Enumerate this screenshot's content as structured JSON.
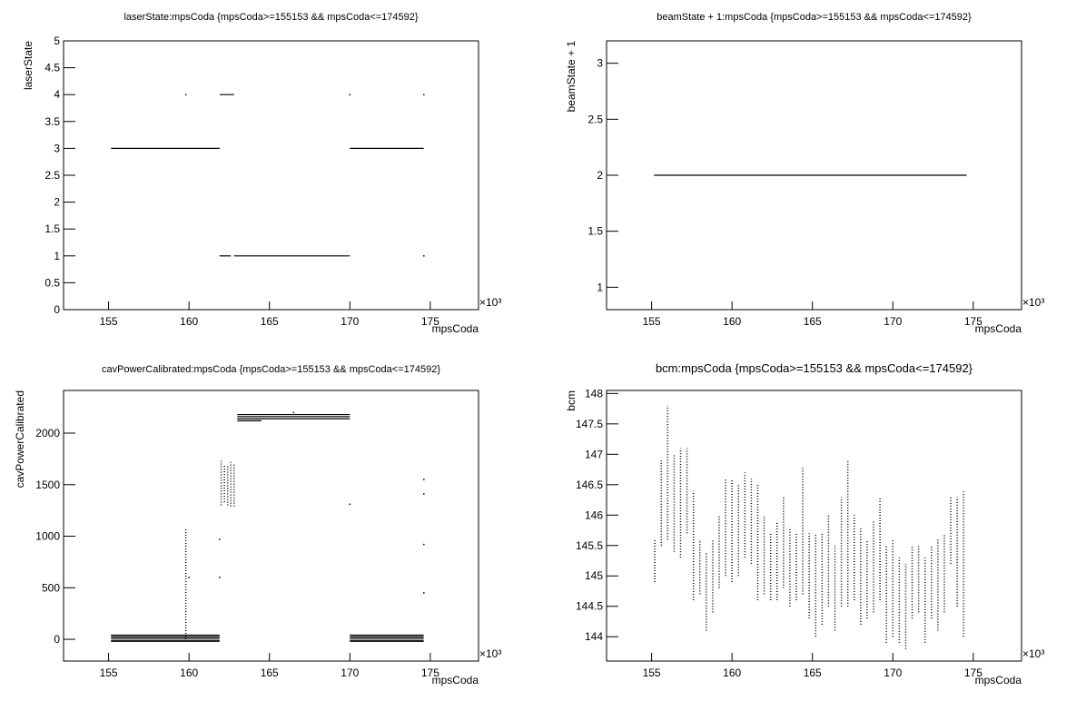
{
  "chart_data": [
    {
      "type": "scatter",
      "title": "laserState:mpsCoda {mpsCoda>=155153 && mpsCoda<=174592}",
      "x_label": "mpsCoda",
      "y_label": "laserState",
      "x_exponent_label": "×10³",
      "xlim": [
        152.2,
        178.0
      ],
      "xticks": [
        155,
        160,
        165,
        170,
        175
      ],
      "ylim": [
        0,
        5
      ],
      "yticks": [
        0,
        0.5,
        1,
        1.5,
        2,
        2.5,
        3,
        3.5,
        4,
        4.5,
        5
      ],
      "color": "#000000",
      "runs": [
        {
          "x": [
            155.15,
            161.9
          ],
          "y": 3
        },
        {
          "x": [
            170.0,
            174.59
          ],
          "y": 3
        },
        {
          "x": [
            161.9,
            162.6
          ],
          "y": 1
        },
        {
          "x": [
            162.8,
            170.0
          ],
          "y": 1
        },
        {
          "x": [
            161.9,
            162.8
          ],
          "y": 4
        },
        {
          "x": [
            159.75,
            159.85
          ],
          "y": 4
        }
      ],
      "ranges": [],
      "points": {
        "x": [
          170.0,
          174.6,
          174.6
        ],
        "y": [
          4,
          4,
          1
        ]
      }
    },
    {
      "type": "scatter",
      "title": "beamState + 1:mpsCoda {mpsCoda>=155153 && mpsCoda<=174592}",
      "x_label": "mpsCoda",
      "y_label": "beamState + 1",
      "x_exponent_label": "×10³",
      "xlim": [
        152.2,
        178.0
      ],
      "xticks": [
        155,
        160,
        165,
        170,
        175
      ],
      "ylim": [
        0.8,
        3.2
      ],
      "yticks": [
        1,
        1.5,
        2,
        2.5,
        3
      ],
      "color": "#000000",
      "runs": [
        {
          "x": [
            155.15,
            174.59
          ],
          "y": 2
        }
      ],
      "ranges": [],
      "points": {
        "x": [],
        "y": []
      }
    },
    {
      "type": "scatter",
      "title": "cavPowerCalibrated:mpsCoda {mpsCoda>=155153 && mpsCoda<=174592}",
      "x_label": "mpsCoda",
      "y_label": "cavPowerCalibrated",
      "x_exponent_label": "×10³",
      "xlim": [
        152.2,
        178.0
      ],
      "xticks": [
        155,
        160,
        165,
        170,
        175
      ],
      "ylim": [
        -211,
        2414
      ],
      "yticks": [
        0,
        500,
        1000,
        1500,
        2000
      ],
      "color": "#000000",
      "runs": [
        {
          "x": [
            155.15,
            161.9
          ],
          "y": 40
        },
        {
          "x": [
            155.15,
            161.9
          ],
          "y": 25
        },
        {
          "x": [
            155.15,
            161.9
          ],
          "y": 10
        },
        {
          "x": [
            155.15,
            161.9
          ],
          "y": -10
        },
        {
          "x": [
            155.15,
            161.9
          ],
          "y": -20
        },
        {
          "x": [
            170.0,
            174.59
          ],
          "y": 40
        },
        {
          "x": [
            170.0,
            174.59
          ],
          "y": 25
        },
        {
          "x": [
            170.0,
            174.59
          ],
          "y": 10
        },
        {
          "x": [
            170.0,
            174.59
          ],
          "y": -10
        },
        {
          "x": [
            170.0,
            174.59
          ],
          "y": -20
        },
        {
          "x": [
            163.0,
            170.0
          ],
          "y": 2180
        },
        {
          "x": [
            163.0,
            170.0
          ],
          "y": 2160
        },
        {
          "x": [
            163.0,
            170.0
          ],
          "y": 2140
        },
        {
          "x": [
            163.0,
            164.5
          ],
          "y": 2120
        }
      ],
      "ranges": [
        {
          "x": 159.8,
          "y": [
            0,
            1080
          ]
        },
        {
          "x": 162.0,
          "y": [
            1300,
            1730
          ]
        },
        {
          "x": 162.2,
          "y": [
            1330,
            1700
          ]
        },
        {
          "x": 162.4,
          "y": [
            1300,
            1680
          ]
        },
        {
          "x": 162.6,
          "y": [
            1290,
            1720
          ]
        },
        {
          "x": 162.8,
          "y": [
            1290,
            1700
          ]
        }
      ],
      "points": {
        "x": [
          160.0,
          161.9,
          161.9,
          170.0,
          174.6,
          174.6,
          174.6,
          174.6,
          166.5
        ],
        "y": [
          600,
          970,
          600,
          1310,
          1550,
          1410,
          920,
          450,
          2200
        ]
      }
    },
    {
      "type": "scatter",
      "title": "bcm:mpsCoda {mpsCoda>=155153 && mpsCoda<=174592}",
      "x_label": "mpsCoda",
      "y_label": "bcm",
      "x_exponent_label": "×10³",
      "xlim": [
        152.2,
        178.0
      ],
      "xticks": [
        155,
        160,
        165,
        170,
        175
      ],
      "ylim": [
        143.6,
        148.05
      ],
      "yticks": [
        144,
        144.5,
        145,
        145.5,
        146,
        146.5,
        147,
        147.5,
        148
      ],
      "color": "#000000",
      "runs": [],
      "ranges": [
        {
          "x": 155.2,
          "y": [
            144.9,
            145.6
          ]
        },
        {
          "x": 155.6,
          "y": [
            145.5,
            146.9
          ]
        },
        {
          "x": 156.0,
          "y": [
            145.6,
            147.8
          ]
        },
        {
          "x": 156.4,
          "y": [
            145.4,
            147.0
          ]
        },
        {
          "x": 156.8,
          "y": [
            145.3,
            147.1
          ]
        },
        {
          "x": 157.2,
          "y": [
            145.7,
            147.1
          ]
        },
        {
          "x": 157.6,
          "y": [
            144.6,
            146.4
          ]
        },
        {
          "x": 158.0,
          "y": [
            144.7,
            145.6
          ]
        },
        {
          "x": 158.4,
          "y": [
            144.1,
            145.4
          ]
        },
        {
          "x": 158.8,
          "y": [
            144.4,
            145.6
          ]
        },
        {
          "x": 159.2,
          "y": [
            144.8,
            146.0
          ]
        },
        {
          "x": 159.6,
          "y": [
            145.0,
            146.6
          ]
        },
        {
          "x": 160.0,
          "y": [
            144.9,
            146.6
          ]
        },
        {
          "x": 160.4,
          "y": [
            145.0,
            146.5
          ]
        },
        {
          "x": 160.8,
          "y": [
            145.3,
            146.7
          ]
        },
        {
          "x": 161.2,
          "y": [
            145.2,
            146.6
          ]
        },
        {
          "x": 161.6,
          "y": [
            144.6,
            146.5
          ]
        },
        {
          "x": 162.0,
          "y": [
            144.7,
            146.0
          ]
        },
        {
          "x": 162.4,
          "y": [
            144.6,
            145.7
          ]
        },
        {
          "x": 162.8,
          "y": [
            144.6,
            145.9
          ]
        },
        {
          "x": 163.2,
          "y": [
            144.8,
            146.3
          ]
        },
        {
          "x": 163.6,
          "y": [
            144.5,
            145.8
          ]
        },
        {
          "x": 164.0,
          "y": [
            144.6,
            145.7
          ]
        },
        {
          "x": 164.4,
          "y": [
            144.7,
            146.8
          ]
        },
        {
          "x": 164.8,
          "y": [
            144.3,
            145.7
          ]
        },
        {
          "x": 165.2,
          "y": [
            144.0,
            145.7
          ]
        },
        {
          "x": 165.6,
          "y": [
            144.2,
            145.7
          ]
        },
        {
          "x": 166.0,
          "y": [
            144.5,
            146.0
          ]
        },
        {
          "x": 166.4,
          "y": [
            144.1,
            145.5
          ]
        },
        {
          "x": 166.8,
          "y": [
            144.5,
            146.3
          ]
        },
        {
          "x": 167.2,
          "y": [
            144.5,
            146.9
          ]
        },
        {
          "x": 167.6,
          "y": [
            144.6,
            146.0
          ]
        },
        {
          "x": 168.0,
          "y": [
            144.2,
            145.8
          ]
        },
        {
          "x": 168.4,
          "y": [
            144.3,
            145.6
          ]
        },
        {
          "x": 168.8,
          "y": [
            144.4,
            145.9
          ]
        },
        {
          "x": 169.2,
          "y": [
            144.6,
            146.3
          ]
        },
        {
          "x": 169.6,
          "y": [
            143.9,
            145.5
          ]
        },
        {
          "x": 170.0,
          "y": [
            144.0,
            145.6
          ]
        },
        {
          "x": 170.4,
          "y": [
            143.9,
            145.3
          ]
        },
        {
          "x": 170.8,
          "y": [
            143.8,
            145.2
          ]
        },
        {
          "x": 171.2,
          "y": [
            144.3,
            145.5
          ]
        },
        {
          "x": 171.6,
          "y": [
            144.4,
            145.5
          ]
        },
        {
          "x": 172.0,
          "y": [
            143.9,
            145.3
          ]
        },
        {
          "x": 172.4,
          "y": [
            144.3,
            145.5
          ]
        },
        {
          "x": 172.8,
          "y": [
            144.1,
            145.6
          ]
        },
        {
          "x": 173.2,
          "y": [
            144.4,
            145.7
          ]
        },
        {
          "x": 173.6,
          "y": [
            145.2,
            146.3
          ]
        },
        {
          "x": 174.0,
          "y": [
            144.5,
            146.3
          ]
        },
        {
          "x": 174.4,
          "y": [
            144.0,
            146.4
          ]
        }
      ],
      "points": {
        "x": [],
        "y": []
      }
    }
  ]
}
